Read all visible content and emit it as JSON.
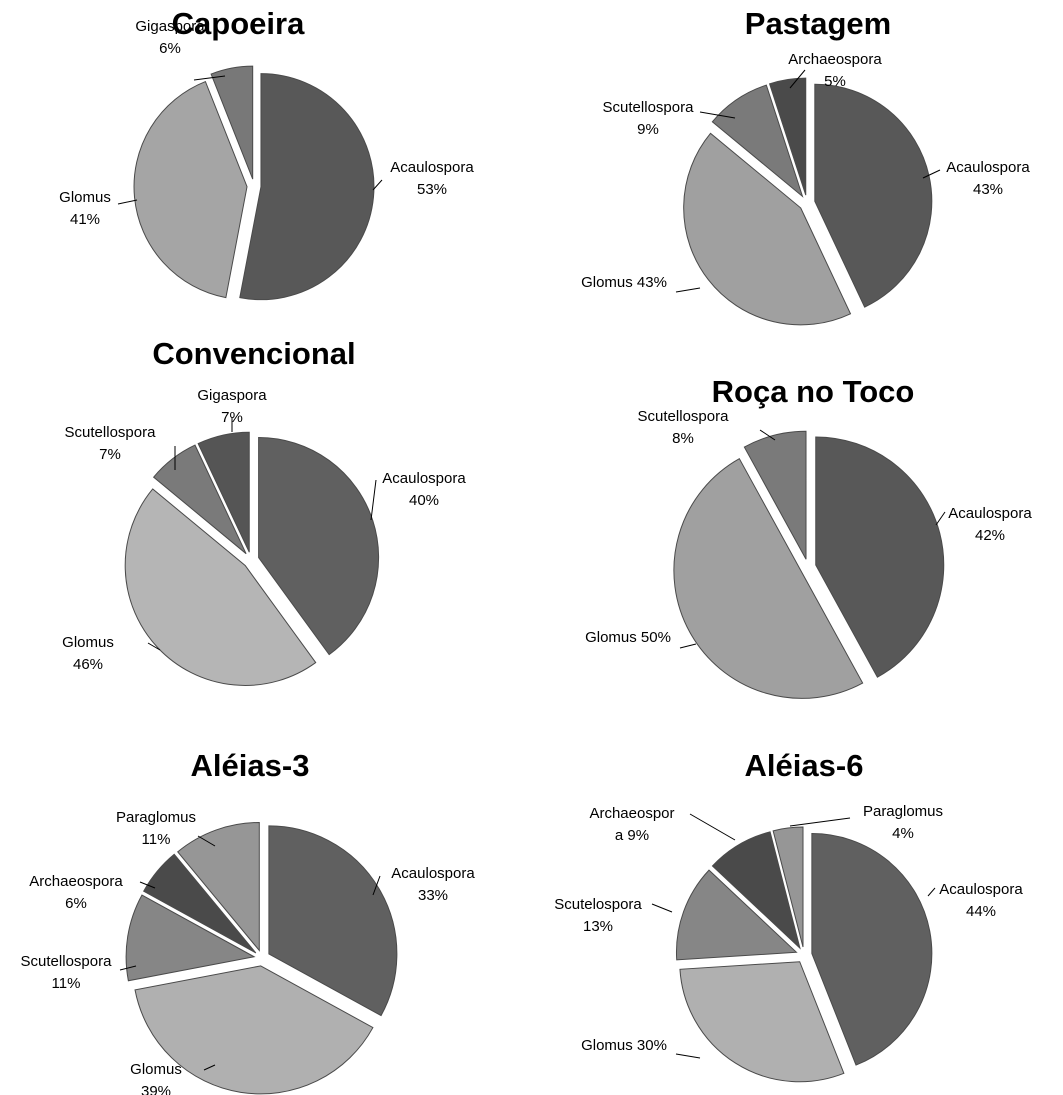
{
  "chart_data": [
    {
      "type": "pie",
      "title": "Capoeira",
      "slices": [
        {
          "name": "Acaulospora",
          "value": 53,
          "label_lines": [
            "Acaulospora",
            "53%"
          ],
          "color": "#585858"
        },
        {
          "name": "Glomus",
          "value": 41,
          "label_lines": [
            "Glomus",
            "41%"
          ],
          "color": "#a5a5a5"
        },
        {
          "name": "Gigaspora",
          "value": 6,
          "label_lines": [
            "Gigaspora",
            "6%"
          ],
          "color": "#787878"
        }
      ]
    },
    {
      "type": "pie",
      "title": "Pastagem",
      "slices": [
        {
          "name": "Acaulospora",
          "value": 43,
          "label_lines": [
            "Acaulospora",
            "43%"
          ],
          "color": "#585858"
        },
        {
          "name": "Glomus",
          "value": 43,
          "label_lines": [
            "Glomus 43%"
          ],
          "color": "#a0a0a0"
        },
        {
          "name": "Scutellospora",
          "value": 9,
          "label_lines": [
            "Scutellospora",
            "9%"
          ],
          "color": "#7a7a7a"
        },
        {
          "name": "Archaeospora",
          "value": 5,
          "label_lines": [
            "Archaeospora",
            "5%"
          ],
          "color": "#4a4a4a"
        }
      ]
    },
    {
      "type": "pie",
      "title": "Convencional",
      "slices": [
        {
          "name": "Acaulospora",
          "value": 40,
          "label_lines": [
            "Acaulospora",
            "40%"
          ],
          "color": "#606060"
        },
        {
          "name": "Glomus",
          "value": 46,
          "label_lines": [
            "Glomus",
            "46%"
          ],
          "color": "#b5b5b5"
        },
        {
          "name": "Scutellospora",
          "value": 7,
          "label_lines": [
            "Scutellospora",
            "7%"
          ],
          "color": "#7a7a7a"
        },
        {
          "name": "Gigaspora",
          "value": 7,
          "label_lines": [
            "Gigaspora",
            "7%"
          ],
          "color": "#555555"
        }
      ]
    },
    {
      "type": "pie",
      "title": "Roça no Toco",
      "slices": [
        {
          "name": "Acaulospora",
          "value": 42,
          "label_lines": [
            "Acaulospora",
            "42%"
          ],
          "color": "#585858"
        },
        {
          "name": "Glomus",
          "value": 50,
          "label_lines": [
            "Glomus 50%"
          ],
          "color": "#a0a0a0"
        },
        {
          "name": "Scutellospora",
          "value": 8,
          "label_lines": [
            "Scutellospora",
            "8%"
          ],
          "color": "#7a7a7a"
        }
      ]
    },
    {
      "type": "pie",
      "title": "Aléias-3",
      "slices": [
        {
          "name": "Acaulospora",
          "value": 33,
          "label_lines": [
            "Acaulospora",
            "33%"
          ],
          "color": "#606060"
        },
        {
          "name": "Glomus",
          "value": 39,
          "label_lines": [
            "Glomus",
            "39%"
          ],
          "color": "#b0b0b0"
        },
        {
          "name": "Scutellospora",
          "value": 11,
          "label_lines": [
            "Scutellospora",
            "11%"
          ],
          "color": "#868686"
        },
        {
          "name": "Archaeospora",
          "value": 6,
          "label_lines": [
            "Archaeospora",
            "6%"
          ],
          "color": "#4a4a4a"
        },
        {
          "name": "Paraglomus",
          "value": 11,
          "label_lines": [
            "Paraglomus",
            "11%"
          ],
          "color": "#969696"
        }
      ]
    },
    {
      "type": "pie",
      "title": "Aléias-6",
      "slices": [
        {
          "name": "Acaulospora",
          "value": 44,
          "label_lines": [
            "Acaulospora",
            "44%"
          ],
          "color": "#606060"
        },
        {
          "name": "Glomus",
          "value": 30,
          "label_lines": [
            "Glomus 30%"
          ],
          "color": "#b0b0b0"
        },
        {
          "name": "Scutelospora",
          "value": 13,
          "label_lines": [
            "Scutelospora",
            "13%"
          ],
          "color": "#868686"
        },
        {
          "name": "Archaeospora",
          "value": 9,
          "label_lines": [
            "Archaeospor",
            "a 9%"
          ],
          "color": "#4a4a4a"
        },
        {
          "name": "Paraglomus",
          "value": 4,
          "label_lines": [
            "Paraglomus",
            "4%"
          ],
          "color": "#969696"
        }
      ]
    }
  ]
}
